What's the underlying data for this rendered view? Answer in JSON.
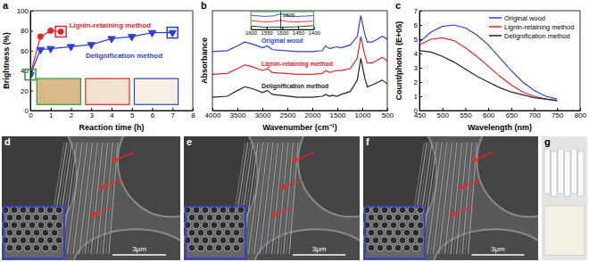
{
  "chart_data": [
    {
      "type": "line",
      "title": "a",
      "x_label": "Reaction time (h)",
      "y_label": "Brightness (%)",
      "xlim": [
        0,
        8
      ],
      "ylim": [
        0,
        100
      ],
      "xticks": [
        0,
        1,
        2,
        3,
        4,
        5,
        6,
        7,
        8
      ],
      "yticks": [
        0,
        20,
        40,
        60,
        80,
        100
      ],
      "series": [
        {
          "name": "Lignin-retaining method",
          "color": "#e8232a",
          "marker": "circle",
          "line_style": "solid",
          "x": [
            0,
            0.5,
            1,
            1.5
          ],
          "values": [
            36,
            74,
            80,
            79
          ]
        },
        {
          "name": "Delignification method",
          "color": "#2f3fd6",
          "marker": "triangle-down",
          "line_style": "solid",
          "x": [
            0,
            0.5,
            1,
            2,
            3,
            4,
            5,
            6,
            7
          ],
          "values": [
            36,
            61,
            62,
            64,
            66,
            72,
            74,
            78,
            78
          ]
        }
      ]
    },
    {
      "type": "line",
      "title": "b",
      "x_label": "Wavenumber (cm⁻¹)",
      "y_label": "Absorbance",
      "xlim": [
        4000,
        500
      ],
      "ylim": [
        0,
        1.05
      ],
      "xticks": [
        4000,
        3500,
        3000,
        2500,
        2000,
        1500,
        1000,
        500
      ],
      "tick_labels": "x",
      "x": [
        4000,
        3700,
        3500,
        3350,
        3200,
        3000,
        2900,
        2800,
        2300,
        2000,
        1800,
        1735,
        1650,
        1600,
        1505,
        1420,
        1240,
        1100,
        1030,
        950,
        900,
        800,
        600,
        500
      ],
      "series": [
        {
          "name": "Original wood",
          "color": "#2f3fd6",
          "line_style": "solid",
          "values": [
            0.62,
            0.63,
            0.68,
            0.72,
            0.7,
            0.66,
            0.68,
            0.64,
            0.62,
            0.62,
            0.63,
            0.68,
            0.65,
            0.66,
            0.67,
            0.66,
            0.69,
            0.78,
            1.0,
            0.8,
            0.72,
            0.72,
            0.78,
            0.75
          ]
        },
        {
          "name": "Lignin-retaining method",
          "color": "#e8232a",
          "line_style": "solid",
          "values": [
            0.38,
            0.39,
            0.44,
            0.48,
            0.46,
            0.42,
            0.44,
            0.4,
            0.38,
            0.38,
            0.39,
            0.42,
            0.4,
            0.41,
            0.42,
            0.42,
            0.44,
            0.55,
            0.78,
            0.58,
            0.5,
            0.5,
            0.56,
            0.52
          ]
        },
        {
          "name": "Delignification method",
          "color": "#222222",
          "line_style": "solid",
          "values": [
            0.14,
            0.15,
            0.21,
            0.25,
            0.23,
            0.19,
            0.21,
            0.17,
            0.14,
            0.14,
            0.15,
            0.17,
            0.15,
            0.16,
            0.15,
            0.17,
            0.2,
            0.32,
            0.55,
            0.34,
            0.25,
            0.27,
            0.32,
            0.28
          ]
        }
      ]
    },
    {
      "type": "line",
      "xlim": [
        1600,
        1400
      ],
      "ylim": [
        0.1,
        0.95
      ],
      "xticks": [
        1600,
        1550,
        1500,
        1450,
        1400
      ],
      "tick_labels": "x",
      "x": [
        1600,
        1560,
        1530,
        1505,
        1480,
        1450,
        1400
      ],
      "series": [
        {
          "color": "#2f3fd6",
          "line_style": "solid",
          "values": [
            0.78,
            0.72,
            0.74,
            0.84,
            0.74,
            0.72,
            0.76
          ]
        },
        {
          "color": "#e8232a",
          "line_style": "solid",
          "values": [
            0.52,
            0.46,
            0.47,
            0.53,
            0.47,
            0.46,
            0.5
          ]
        },
        {
          "color": "#222222",
          "line_style": "solid",
          "values": [
            0.26,
            0.21,
            0.21,
            0.21,
            0.21,
            0.23,
            0.28
          ]
        }
      ],
      "annotations": [
        {
          "text": "1505",
          "x": 1505
        }
      ]
    },
    {
      "type": "line",
      "title": "c",
      "x_label": "Wavelength (nm)",
      "y_label": "Count/photon (E+05)",
      "xlim": [
        450,
        800
      ],
      "ylim": [
        0,
        7
      ],
      "xticks": [
        450,
        500,
        550,
        600,
        650,
        700,
        750,
        800
      ],
      "yticks": [
        0,
        1,
        2,
        3,
        4,
        5,
        6,
        7
      ],
      "legend": "upper right",
      "x": [
        450,
        475,
        500,
        525,
        550,
        575,
        600,
        625,
        650,
        675,
        700,
        725,
        750
      ],
      "series": [
        {
          "name": "Original wood",
          "color": "#2f3fd6",
          "line_style": "solid",
          "values": [
            4.8,
            5.5,
            5.9,
            6.0,
            5.8,
            5.3,
            4.6,
            3.7,
            2.8,
            2.0,
            1.4,
            1.0,
            0.8
          ]
        },
        {
          "name": "Lignin-retaining method",
          "color": "#e8232a",
          "line_style": "solid",
          "values": [
            4.6,
            5.0,
            5.1,
            4.9,
            4.4,
            3.8,
            3.1,
            2.4,
            1.8,
            1.3,
            1.0,
            0.8,
            0.7
          ]
        },
        {
          "name": "Delignification method",
          "color": "#222222",
          "line_style": "solid",
          "values": [
            4.2,
            4.1,
            3.8,
            3.4,
            2.9,
            2.4,
            2.0,
            1.6,
            1.3,
            1.1,
            0.9,
            0.8,
            0.7
          ]
        }
      ]
    },
    {
      "type": "image",
      "title": "d",
      "scale_bar": "3μm"
    },
    {
      "type": "image",
      "title": "e",
      "scale_bar": "3μm"
    },
    {
      "type": "image",
      "title": "f",
      "scale_bar": "3μm"
    },
    {
      "type": "image",
      "title": "g"
    }
  ]
}
